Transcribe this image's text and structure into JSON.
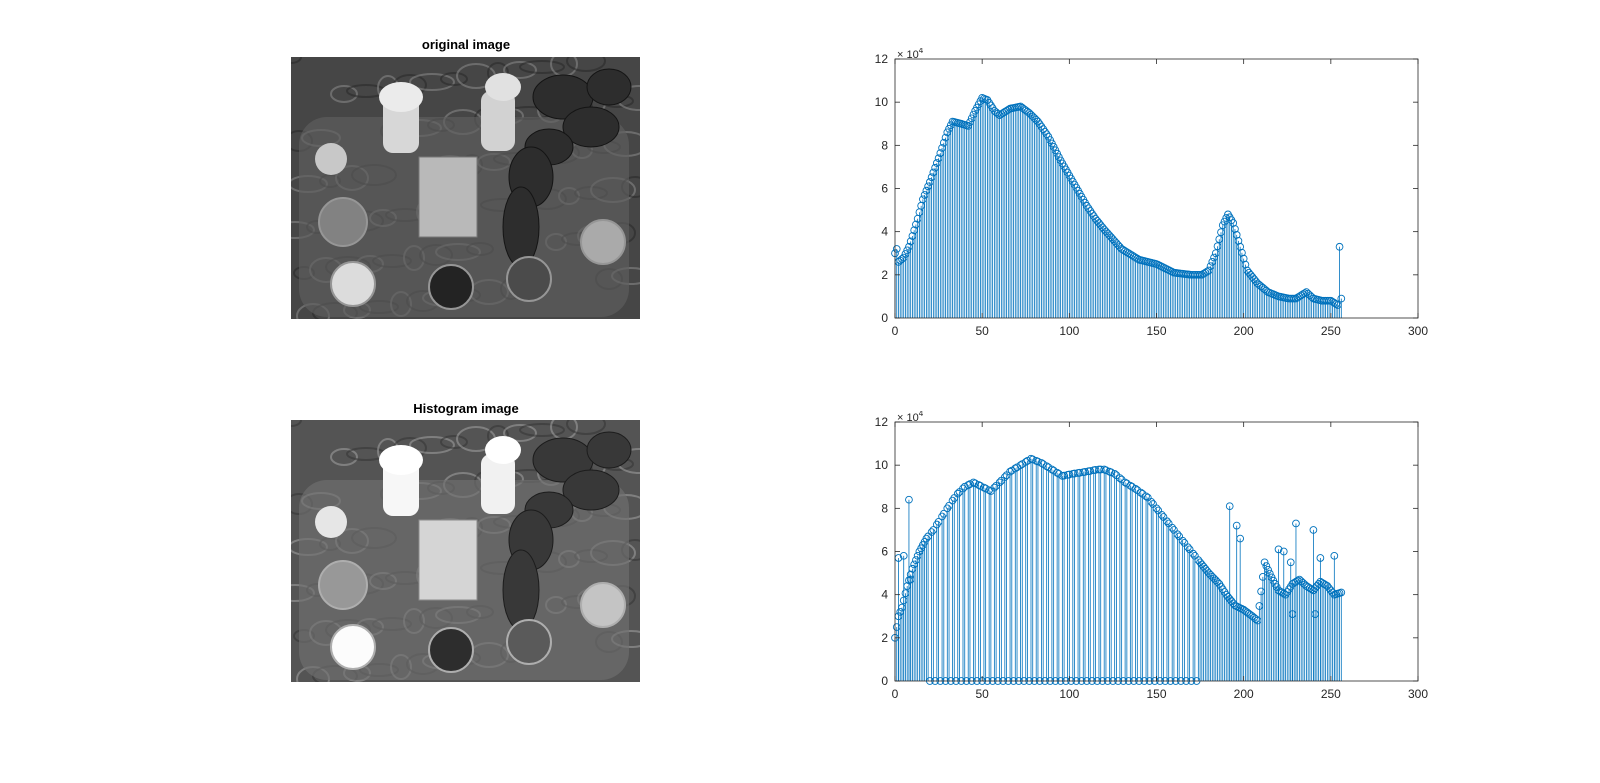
{
  "figure": {
    "panels": [
      {
        "title": "original image",
        "image_icon": "photo-still-life-grayscale",
        "tone": "original"
      },
      {
        "title": "Histogram image",
        "image_icon": "photo-still-life-grayscale",
        "tone": "equalized"
      }
    ]
  },
  "colors": {
    "stem": "#0072BD",
    "axis": "#262626",
    "background": "#ffffff"
  },
  "chart_data": [
    {
      "type": "stem",
      "title": "",
      "xlabel": "",
      "ylabel": "",
      "xlim": [
        0,
        300
      ],
      "ylim": [
        0,
        120000
      ],
      "xticks": [
        "0",
        "50",
        "100",
        "150",
        "200",
        "250",
        "300"
      ],
      "yticks": [
        "0",
        "2",
        "4",
        "6",
        "8",
        "10",
        "12"
      ],
      "y_exponent_label": "× 10^4",
      "marker": "circle",
      "series": [
        {
          "x_range": [
            0,
            256
          ],
          "anchors": [
            [
              0,
              30000
            ],
            [
              1,
              32000
            ],
            [
              2,
              26000
            ],
            [
              5,
              28000
            ],
            [
              8,
              33000
            ],
            [
              10,
              38000
            ],
            [
              13,
              46000
            ],
            [
              16,
              55000
            ],
            [
              20,
              63000
            ],
            [
              25,
              74000
            ],
            [
              30,
              86000
            ],
            [
              33,
              91000
            ],
            [
              38,
              90000
            ],
            [
              42,
              89000
            ],
            [
              46,
              96000
            ],
            [
              50,
              102000
            ],
            [
              53,
              101000
            ],
            [
              57,
              96000
            ],
            [
              60,
              94000
            ],
            [
              66,
              97000
            ],
            [
              72,
              98000
            ],
            [
              77,
              95000
            ],
            [
              82,
              91000
            ],
            [
              88,
              84000
            ],
            [
              95,
              73000
            ],
            [
              100,
              66000
            ],
            [
              105,
              59000
            ],
            [
              110,
              52000
            ],
            [
              115,
              46000
            ],
            [
              120,
              41000
            ],
            [
              130,
              32000
            ],
            [
              140,
              27000
            ],
            [
              150,
              25000
            ],
            [
              160,
              21000
            ],
            [
              170,
              20000
            ],
            [
              176,
              20000
            ],
            [
              180,
              22000
            ],
            [
              184,
              30000
            ],
            [
              188,
              43000
            ],
            [
              191,
              48000
            ],
            [
              194,
              44000
            ],
            [
              198,
              33000
            ],
            [
              202,
              22000
            ],
            [
              208,
              16000
            ],
            [
              214,
              12000
            ],
            [
              220,
              10000
            ],
            [
              226,
              9000
            ],
            [
              230,
              9000
            ],
            [
              234,
              11000
            ],
            [
              236,
              12000
            ],
            [
              240,
              9000
            ],
            [
              245,
              8000
            ],
            [
              250,
              8000
            ],
            [
              254,
              6000
            ],
            [
              255,
              33000
            ],
            [
              256,
              9000
            ]
          ]
        }
      ]
    },
    {
      "type": "stem",
      "title": "",
      "xlabel": "",
      "ylabel": "",
      "xlim": [
        0,
        300
      ],
      "ylim": [
        0,
        120000
      ],
      "xticks": [
        "0",
        "50",
        "100",
        "150",
        "200",
        "250",
        "300"
      ],
      "yticks": [
        "0",
        "2",
        "4",
        "6",
        "8",
        "10",
        "12"
      ],
      "y_exponent_label": "× 10^4",
      "marker": "circle",
      "series": [
        {
          "x_range": [
            0,
            256
          ],
          "envelope": [
            [
              0,
              20000
            ],
            [
              2,
              30000
            ],
            [
              4,
              34000
            ],
            [
              7,
              44000
            ],
            [
              10,
              52000
            ],
            [
              14,
              60000
            ],
            [
              18,
              66000
            ],
            [
              22,
              70000
            ],
            [
              26,
              75000
            ],
            [
              30,
              80000
            ],
            [
              35,
              86000
            ],
            [
              40,
              90000
            ],
            [
              45,
              92000
            ],
            [
              50,
              90000
            ],
            [
              55,
              88000
            ],
            [
              60,
              92000
            ],
            [
              66,
              97000
            ],
            [
              72,
              100000
            ],
            [
              78,
              103000
            ],
            [
              84,
              101000
            ],
            [
              90,
              98000
            ],
            [
              96,
              95000
            ],
            [
              102,
              96000
            ],
            [
              110,
              97000
            ],
            [
              116,
              98000
            ],
            [
              120,
              98000
            ],
            [
              126,
              96000
            ],
            [
              132,
              92000
            ],
            [
              138,
              89000
            ],
            [
              145,
              85000
            ],
            [
              150,
              80000
            ],
            [
              156,
              74000
            ],
            [
              162,
              68000
            ],
            [
              168,
              62000
            ],
            [
              174,
              56000
            ],
            [
              180,
              50000
            ],
            [
              186,
              45000
            ],
            [
              190,
              40000
            ],
            [
              195,
              35000
            ],
            [
              200,
              33000
            ],
            [
              205,
              30000
            ],
            [
              208,
              28000
            ],
            [
              212,
              55000
            ],
            [
              216,
              48000
            ],
            [
              220,
              42000
            ],
            [
              224,
              40000
            ],
            [
              228,
              45000
            ],
            [
              232,
              47000
            ],
            [
              236,
              44000
            ],
            [
              240,
              42000
            ],
            [
              244,
              46000
            ],
            [
              248,
              44000
            ],
            [
              252,
              40000
            ],
            [
              256,
              41000
            ]
          ],
          "zero_bins_from": 20,
          "zero_bins_to": 175,
          "zero_bin_step": 3,
          "spikes": [
            [
              2,
              57000
            ],
            [
              5,
              58000
            ],
            [
              8,
              84000
            ],
            [
              9,
              47000
            ],
            [
              192,
              81000
            ],
            [
              196,
              72000
            ],
            [
              198,
              66000
            ],
            [
              220,
              61000
            ],
            [
              223,
              60000
            ],
            [
              227,
              55000
            ],
            [
              230,
              73000
            ],
            [
              240,
              70000
            ],
            [
              244,
              57000
            ],
            [
              252,
              58000
            ],
            [
              228,
              31000
            ],
            [
              241,
              31000
            ]
          ]
        }
      ]
    }
  ]
}
